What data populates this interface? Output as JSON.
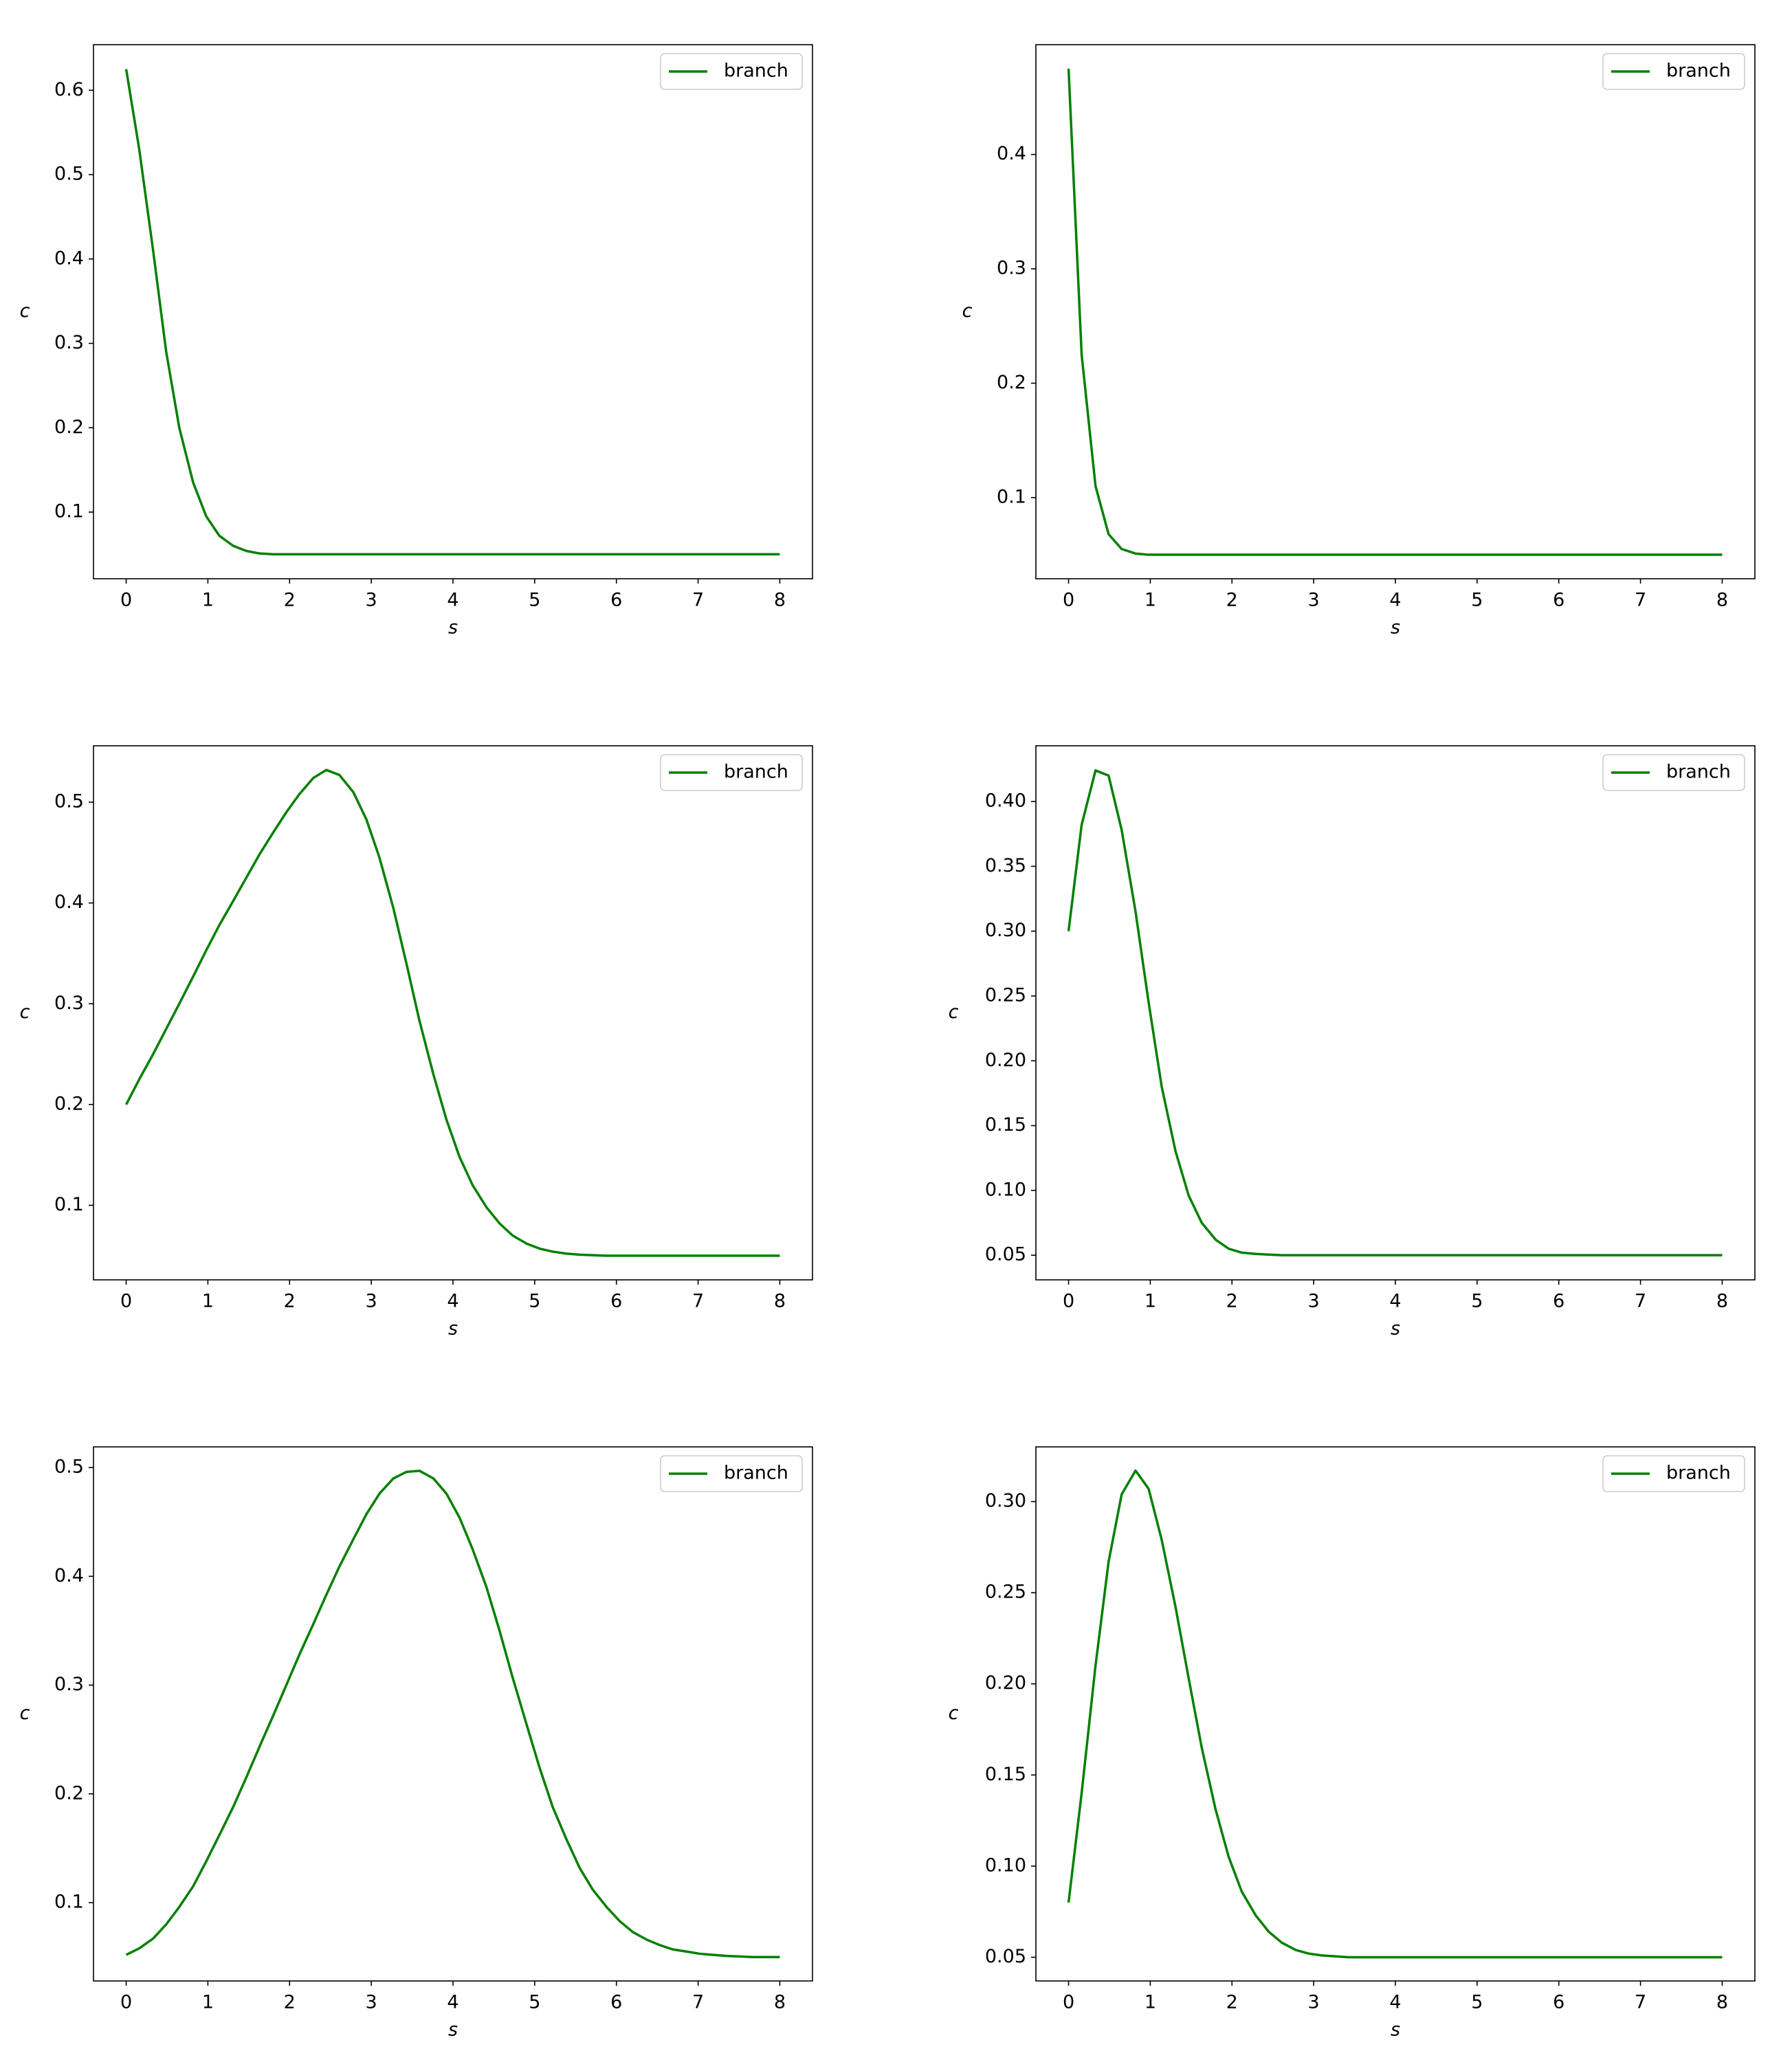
{
  "chart_data": [
    {
      "type": "line",
      "xlabel": "s",
      "ylabel": "c",
      "xlim": [
        -0.4,
        8.4
      ],
      "ylim": [
        0.021,
        0.654
      ],
      "xticks": [
        0,
        1,
        2,
        3,
        4,
        5,
        6,
        7,
        8
      ],
      "yticks": [
        0.1,
        0.2,
        0.3,
        0.4,
        0.5,
        0.6
      ],
      "legend": "upper right",
      "x": [
        0,
        0.16,
        0.33,
        0.49,
        0.65,
        0.82,
        0.98,
        1.14,
        1.31,
        1.47,
        1.63,
        1.8,
        1.96,
        2.12,
        2.29,
        2.45,
        2.61,
        2.78,
        2.94,
        3.1,
        3.27,
        3.43,
        3.59,
        3.76,
        3.92,
        4.08,
        4.24,
        4.41,
        4.57,
        4.73,
        4.9,
        5.06,
        5.22,
        5.39,
        5.55,
        5.71,
        5.88,
        6.04,
        6.2,
        6.37,
        6.53,
        6.69,
        6.86,
        7.02,
        7.18,
        7.35,
        7.51,
        7.67,
        7.84,
        8
      ],
      "series": [
        {
          "name": "branch",
          "color": "#008000",
          "values": [
            0.625,
            0.53,
            0.41,
            0.29,
            0.2,
            0.135,
            0.095,
            0.072,
            0.06,
            0.054,
            0.051,
            0.05,
            0.05,
            0.05,
            0.05,
            0.05,
            0.05,
            0.05,
            0.05,
            0.05,
            0.05,
            0.05,
            0.05,
            0.05,
            0.05,
            0.05,
            0.05,
            0.05,
            0.05,
            0.05,
            0.05,
            0.05,
            0.05,
            0.05,
            0.05,
            0.05,
            0.05,
            0.05,
            0.05,
            0.05,
            0.05,
            0.05,
            0.05,
            0.05,
            0.05,
            0.05,
            0.05,
            0.05,
            0.05,
            0.05
          ]
        }
      ]
    },
    {
      "type": "line",
      "xlabel": "s",
      "ylabel": "c",
      "xlim": [
        -0.4,
        8.4
      ],
      "ylim": [
        0.029,
        0.496
      ],
      "xticks": [
        0,
        1,
        2,
        3,
        4,
        5,
        6,
        7,
        8
      ],
      "yticks": [
        0.1,
        0.2,
        0.3,
        0.4
      ],
      "legend": "upper right",
      "x": [
        0,
        0.16,
        0.33,
        0.49,
        0.65,
        0.82,
        0.98,
        1.14,
        1.31,
        1.47,
        1.63,
        1.8,
        1.96,
        2.12,
        2.29,
        2.45,
        2.61,
        2.78,
        2.94,
        3.1,
        3.27,
        3.43,
        3.59,
        3.76,
        3.92,
        4.08,
        4.24,
        4.41,
        4.57,
        4.73,
        4.9,
        5.06,
        5.22,
        5.39,
        5.55,
        5.71,
        5.88,
        6.04,
        6.2,
        6.37,
        6.53,
        6.69,
        6.86,
        7.02,
        7.18,
        7.35,
        7.51,
        7.67,
        7.84,
        8
      ],
      "series": [
        {
          "name": "branch",
          "color": "#008000",
          "values": [
            0.475,
            0.225,
            0.11,
            0.068,
            0.055,
            0.051,
            0.05,
            0.05,
            0.05,
            0.05,
            0.05,
            0.05,
            0.05,
            0.05,
            0.05,
            0.05,
            0.05,
            0.05,
            0.05,
            0.05,
            0.05,
            0.05,
            0.05,
            0.05,
            0.05,
            0.05,
            0.05,
            0.05,
            0.05,
            0.05,
            0.05,
            0.05,
            0.05,
            0.05,
            0.05,
            0.05,
            0.05,
            0.05,
            0.05,
            0.05,
            0.05,
            0.05,
            0.05,
            0.05,
            0.05,
            0.05,
            0.05,
            0.05,
            0.05,
            0.05
          ]
        }
      ]
    },
    {
      "type": "line",
      "xlabel": "s",
      "ylabel": "c",
      "xlim": [
        -0.4,
        8.4
      ],
      "ylim": [
        0.026,
        0.556
      ],
      "xticks": [
        0,
        1,
        2,
        3,
        4,
        5,
        6,
        7,
        8
      ],
      "yticks": [
        0.1,
        0.2,
        0.3,
        0.4,
        0.5
      ],
      "legend": "upper right",
      "x": [
        0,
        0.16,
        0.33,
        0.49,
        0.65,
        0.82,
        0.98,
        1.14,
        1.31,
        1.47,
        1.63,
        1.8,
        1.96,
        2.12,
        2.29,
        2.45,
        2.61,
        2.78,
        2.94,
        3.1,
        3.27,
        3.43,
        3.59,
        3.76,
        3.92,
        4.08,
        4.24,
        4.41,
        4.57,
        4.73,
        4.9,
        5.06,
        5.22,
        5.39,
        5.55,
        5.71,
        5.88,
        6.04,
        6.2,
        6.37,
        6.53,
        6.69,
        6.86,
        7.02,
        7.18,
        7.35,
        7.51,
        7.67,
        7.84,
        8
      ],
      "series": [
        {
          "name": "branch",
          "color": "#008000",
          "values": [
            0.2,
            0.225,
            0.25,
            0.275,
            0.3,
            0.327,
            0.353,
            0.378,
            0.402,
            0.425,
            0.448,
            0.47,
            0.49,
            0.508,
            0.524,
            0.532,
            0.527,
            0.51,
            0.483,
            0.445,
            0.395,
            0.34,
            0.283,
            0.23,
            0.185,
            0.148,
            0.12,
            0.098,
            0.082,
            0.07,
            0.062,
            0.057,
            0.054,
            0.052,
            0.051,
            0.0505,
            0.05,
            0.05,
            0.05,
            0.05,
            0.05,
            0.05,
            0.05,
            0.05,
            0.05,
            0.05,
            0.05,
            0.05,
            0.05,
            0.05
          ]
        }
      ]
    },
    {
      "type": "line",
      "xlabel": "s",
      "ylabel": "c",
      "xlim": [
        -0.4,
        8.4
      ],
      "ylim": [
        0.031,
        0.443
      ],
      "xticks": [
        0,
        1,
        2,
        3,
        4,
        5,
        6,
        7,
        8
      ],
      "yticks": [
        {
          "value": 0.05,
          "label": "0.05"
        },
        {
          "value": 0.1,
          "label": "0.10"
        },
        {
          "value": 0.15,
          "label": "0.15"
        },
        {
          "value": 0.2,
          "label": "0.20"
        },
        {
          "value": 0.25,
          "label": "0.25"
        },
        {
          "value": 0.3,
          "label": "0.30"
        },
        {
          "value": 0.35,
          "label": "0.35"
        },
        {
          "value": 0.4,
          "label": "0.40"
        }
      ],
      "legend": "upper right",
      "x": [
        0,
        0.16,
        0.33,
        0.49,
        0.65,
        0.82,
        0.98,
        1.14,
        1.31,
        1.47,
        1.63,
        1.8,
        1.96,
        2.12,
        2.29,
        2.45,
        2.61,
        2.78,
        2.94,
        3.1,
        3.27,
        3.43,
        3.59,
        3.76,
        3.92,
        4.08,
        4.24,
        4.41,
        4.57,
        4.73,
        4.9,
        5.06,
        5.22,
        5.39,
        5.55,
        5.71,
        5.88,
        6.04,
        6.2,
        6.37,
        6.53,
        6.69,
        6.86,
        7.02,
        7.18,
        7.35,
        7.51,
        7.67,
        7.84,
        8
      ],
      "series": [
        {
          "name": "branch",
          "color": "#008000",
          "values": [
            0.3,
            0.382,
            0.424,
            0.42,
            0.378,
            0.315,
            0.245,
            0.18,
            0.13,
            0.096,
            0.075,
            0.062,
            0.055,
            0.052,
            0.051,
            0.0505,
            0.05,
            0.05,
            0.05,
            0.05,
            0.05,
            0.05,
            0.05,
            0.05,
            0.05,
            0.05,
            0.05,
            0.05,
            0.05,
            0.05,
            0.05,
            0.05,
            0.05,
            0.05,
            0.05,
            0.05,
            0.05,
            0.05,
            0.05,
            0.05,
            0.05,
            0.05,
            0.05,
            0.05,
            0.05,
            0.05,
            0.05,
            0.05,
            0.05,
            0.05
          ]
        }
      ]
    },
    {
      "type": "line",
      "xlabel": "s",
      "ylabel": "c",
      "xlim": [
        -0.4,
        8.4
      ],
      "ylim": [
        0.028,
        0.519
      ],
      "xticks": [
        0,
        1,
        2,
        3,
        4,
        5,
        6,
        7,
        8
      ],
      "yticks": [
        0.1,
        0.2,
        0.3,
        0.4,
        0.5
      ],
      "legend": "upper right",
      "x": [
        0,
        0.16,
        0.33,
        0.49,
        0.65,
        0.82,
        0.98,
        1.14,
        1.31,
        1.47,
        1.63,
        1.8,
        1.96,
        2.12,
        2.29,
        2.45,
        2.61,
        2.78,
        2.94,
        3.1,
        3.27,
        3.43,
        3.59,
        3.76,
        3.92,
        4.08,
        4.24,
        4.41,
        4.57,
        4.73,
        4.9,
        5.06,
        5.22,
        5.39,
        5.55,
        5.71,
        5.88,
        6.04,
        6.2,
        6.37,
        6.53,
        6.69,
        6.86,
        7.02,
        7.18,
        7.35,
        7.51,
        7.67,
        7.84,
        8
      ],
      "series": [
        {
          "name": "branch",
          "color": "#008000",
          "values": [
            0.052,
            0.058,
            0.067,
            0.08,
            0.096,
            0.115,
            0.138,
            0.162,
            0.188,
            0.215,
            0.243,
            0.272,
            0.3,
            0.328,
            0.356,
            0.383,
            0.409,
            0.434,
            0.457,
            0.476,
            0.49,
            0.496,
            0.497,
            0.49,
            0.476,
            0.454,
            0.425,
            0.39,
            0.35,
            0.307,
            0.264,
            0.224,
            0.188,
            0.158,
            0.132,
            0.112,
            0.096,
            0.083,
            0.073,
            0.066,
            0.061,
            0.057,
            0.055,
            0.053,
            0.052,
            0.051,
            0.0505,
            0.05,
            0.05,
            0.05
          ]
        }
      ]
    },
    {
      "type": "line",
      "xlabel": "s",
      "ylabel": "c",
      "xlim": [
        -0.4,
        8.4
      ],
      "ylim": [
        0.037,
        0.33
      ],
      "xticks": [
        0,
        1,
        2,
        3,
        4,
        5,
        6,
        7,
        8
      ],
      "yticks": [
        {
          "value": 0.05,
          "label": "0.05"
        },
        {
          "value": 0.1,
          "label": "0.10"
        },
        {
          "value": 0.15,
          "label": "0.15"
        },
        {
          "value": 0.2,
          "label": "0.20"
        },
        {
          "value": 0.25,
          "label": "0.25"
        },
        {
          "value": 0.3,
          "label": "0.30"
        }
      ],
      "legend": "upper right",
      "x": [
        0,
        0.16,
        0.33,
        0.49,
        0.65,
        0.82,
        0.98,
        1.14,
        1.31,
        1.47,
        1.63,
        1.8,
        1.96,
        2.12,
        2.29,
        2.45,
        2.61,
        2.78,
        2.94,
        3.1,
        3.27,
        3.43,
        3.59,
        3.76,
        3.92,
        4.08,
        4.24,
        4.41,
        4.57,
        4.73,
        4.9,
        5.06,
        5.22,
        5.39,
        5.55,
        5.71,
        5.88,
        6.04,
        6.2,
        6.37,
        6.53,
        6.69,
        6.86,
        7.02,
        7.18,
        7.35,
        7.51,
        7.67,
        7.84,
        8
      ],
      "series": [
        {
          "name": "branch",
          "color": "#008000",
          "values": [
            0.08,
            0.14,
            0.21,
            0.267,
            0.304,
            0.317,
            0.307,
            0.279,
            0.242,
            0.203,
            0.165,
            0.131,
            0.105,
            0.086,
            0.073,
            0.064,
            0.058,
            0.054,
            0.052,
            0.051,
            0.0505,
            0.05,
            0.05,
            0.05,
            0.05,
            0.05,
            0.05,
            0.05,
            0.05,
            0.05,
            0.05,
            0.05,
            0.05,
            0.05,
            0.05,
            0.05,
            0.05,
            0.05,
            0.05,
            0.05,
            0.05,
            0.05,
            0.05,
            0.05,
            0.05,
            0.05,
            0.05,
            0.05,
            0.05,
            0.05
          ]
        }
      ]
    }
  ]
}
